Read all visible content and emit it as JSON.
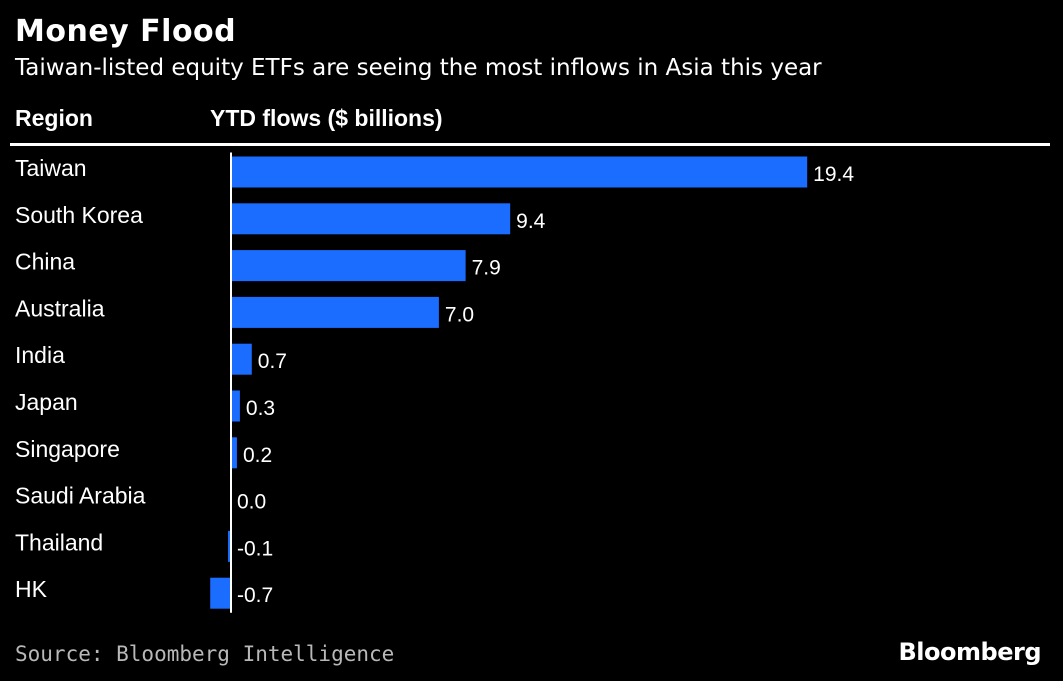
{
  "title": "Money Flood",
  "subtitle": "Taiwan-listed equity ETFs are seeing the most inflows in Asia this year",
  "source": "Source: Bloomberg Intelligence",
  "brand": "Bloomberg",
  "colors": {
    "background": "#000000",
    "bar": "#1a6dff",
    "text": "#ffffff",
    "axis": "#ffffff"
  },
  "chart_data": {
    "type": "bar",
    "orientation": "horizontal",
    "title": "Money Flood",
    "subtitle": "Taiwan-listed equity ETFs are seeing the most inflows in Asia this year",
    "category_header": "Region",
    "value_header": "YTD flows ($ billions)",
    "categories": [
      "Taiwan",
      "South Korea",
      "China",
      "Australia",
      "India",
      "Japan",
      "Singapore",
      "Saudi Arabia",
      "Thailand",
      "HK"
    ],
    "values": [
      19.4,
      9.4,
      7.9,
      7.0,
      0.7,
      0.3,
      0.2,
      0.0,
      -0.1,
      -0.7
    ],
    "labels": [
      "19.4",
      "9.4",
      "7.9",
      "7.0",
      "0.7",
      "0.3",
      "0.2",
      "0.0",
      "-0.1",
      "-0.7"
    ],
    "xlim": [
      -0.7,
      19.4
    ],
    "grid": false
  }
}
